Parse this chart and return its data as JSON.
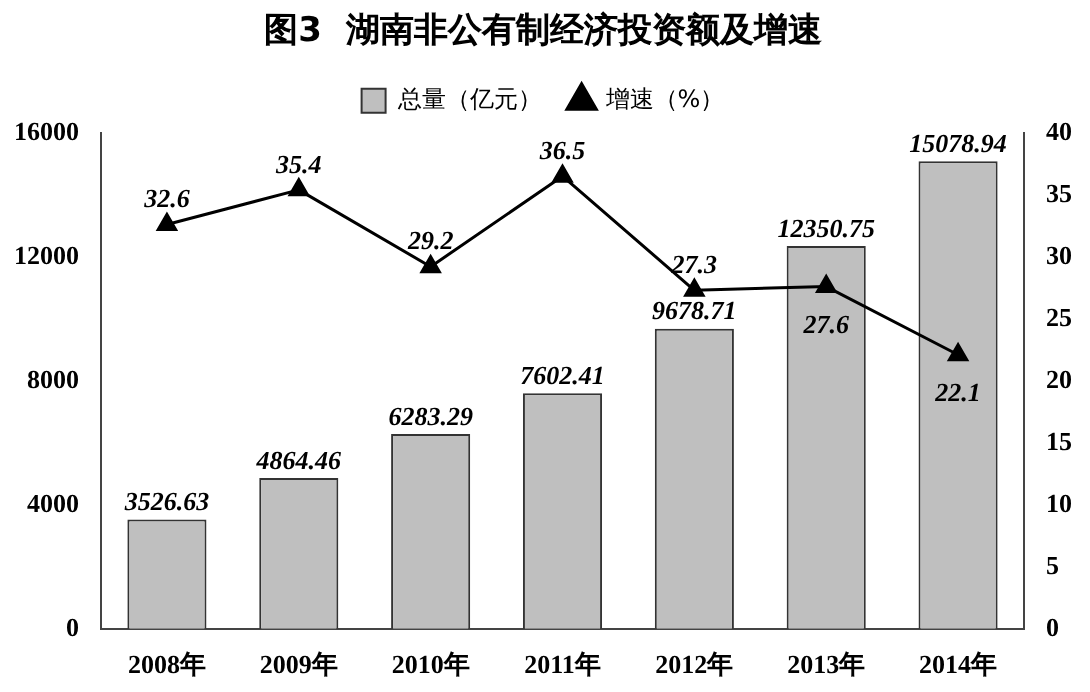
{
  "chart_data": {
    "type": "bar",
    "title": "图3  湖南非公有制经济投资额及增速",
    "categories": [
      "2008年",
      "2009年",
      "2010年",
      "2011年",
      "2012年",
      "2013年",
      "2014年"
    ],
    "series": [
      {
        "name": "总量（亿元）",
        "color": "#bfbfbf",
        "values": [
          3526.63,
          4864.46,
          6283.29,
          7602.41,
          9678.71,
          12350.75,
          15078.94
        ]
      },
      {
        "name": "增速（%）",
        "type": "line",
        "axis": "y2",
        "color": "#000000",
        "values": [
          32.6,
          35.4,
          29.2,
          36.5,
          27.3,
          27.6,
          22.1
        ]
      }
    ],
    "ylim": [
      0,
      16000
    ],
    "yticks": [
      0,
      4000,
      8000,
      12000,
      16000
    ],
    "y2lim": [
      0,
      40
    ],
    "y2ticks": [
      0,
      5,
      10,
      15,
      20,
      25,
      30,
      35,
      40
    ],
    "data_labels": true,
    "legend": "top",
    "marker": "triangle",
    "grid": false
  }
}
